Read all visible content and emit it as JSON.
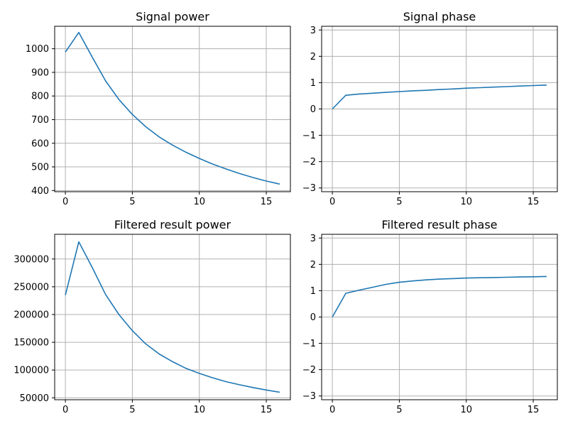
{
  "colors": {
    "series": "#1f77b4",
    "grid": "#b0b0b0"
  },
  "chart_data": [
    {
      "type": "line",
      "title": "Signal power",
      "x": [
        0,
        1,
        2,
        3,
        4,
        5,
        6,
        7,
        8,
        9,
        10,
        11,
        12,
        13,
        14,
        15,
        16
      ],
      "y": [
        986,
        1069,
        965,
        864,
        785,
        722,
        670,
        627,
        592,
        562,
        536,
        512,
        491,
        472,
        455,
        440,
        427
      ],
      "xlim": [
        -0.8,
        16.8
      ],
      "ylim": [
        395,
        1095
      ],
      "xticks": [
        0,
        5,
        10,
        15
      ],
      "yticks": [
        400,
        500,
        600,
        700,
        800,
        900,
        1000
      ],
      "xtick_labels": [
        "0",
        "5",
        "10",
        "15"
      ],
      "ytick_labels": [
        "400",
        "500",
        "600",
        "700",
        "800",
        "900",
        "1000"
      ],
      "grid": true
    },
    {
      "type": "line",
      "title": "Signal phase",
      "x": [
        0,
        1,
        2,
        3,
        4,
        5,
        6,
        7,
        8,
        9,
        10,
        11,
        12,
        13,
        14,
        15,
        16
      ],
      "y": [
        0.0,
        0.52,
        0.57,
        0.6,
        0.63,
        0.66,
        0.69,
        0.71,
        0.74,
        0.76,
        0.79,
        0.81,
        0.83,
        0.85,
        0.87,
        0.89,
        0.91
      ],
      "xlim": [
        -0.8,
        16.8
      ],
      "ylim": [
        -3.14159,
        3.14159
      ],
      "xticks": [
        0,
        5,
        10,
        15
      ],
      "yticks": [
        -3,
        -2,
        -1,
        0,
        1,
        2,
        3
      ],
      "xtick_labels": [
        "0",
        "5",
        "10",
        "15"
      ],
      "ytick_labels": [
        "−3",
        "−2",
        "−1",
        "0",
        "1",
        "2",
        "3"
      ],
      "grid": true
    },
    {
      "type": "line",
      "title": "Filtered result power",
      "x": [
        0,
        1,
        2,
        3,
        4,
        5,
        6,
        7,
        8,
        9,
        10,
        11,
        12,
        13,
        14,
        15,
        16
      ],
      "y": [
        235000,
        331000,
        285000,
        236000,
        200000,
        171000,
        147000,
        129000,
        115000,
        103000,
        94000,
        86000,
        79000,
        73500,
        68500,
        64000,
        60000
      ],
      "xlim": [
        -0.8,
        16.8
      ],
      "ylim": [
        46500,
        344500
      ],
      "xticks": [
        0,
        5,
        10,
        15
      ],
      "yticks": [
        50000,
        100000,
        150000,
        200000,
        250000,
        300000
      ],
      "xtick_labels": [
        "0",
        "5",
        "10",
        "15"
      ],
      "ytick_labels": [
        "50000",
        "100000",
        "150000",
        "200000",
        "250000",
        "300000"
      ],
      "grid": true
    },
    {
      "type": "line",
      "title": "Filtered result phase",
      "x": [
        0,
        1,
        2,
        3,
        4,
        5,
        6,
        7,
        8,
        9,
        10,
        11,
        12,
        13,
        14,
        15,
        16
      ],
      "y": [
        0.0,
        0.9,
        1.02,
        1.13,
        1.24,
        1.32,
        1.37,
        1.41,
        1.44,
        1.46,
        1.48,
        1.49,
        1.5,
        1.51,
        1.52,
        1.53,
        1.54
      ],
      "xlim": [
        -0.8,
        16.8
      ],
      "ylim": [
        -3.14159,
        3.14159
      ],
      "xticks": [
        0,
        5,
        10,
        15
      ],
      "yticks": [
        -3,
        -2,
        -1,
        0,
        1,
        2,
        3
      ],
      "xtick_labels": [
        "0",
        "5",
        "10",
        "15"
      ],
      "ytick_labels": [
        "−3",
        "−2",
        "−1",
        "0",
        "1",
        "2",
        "3"
      ],
      "grid": true
    }
  ]
}
